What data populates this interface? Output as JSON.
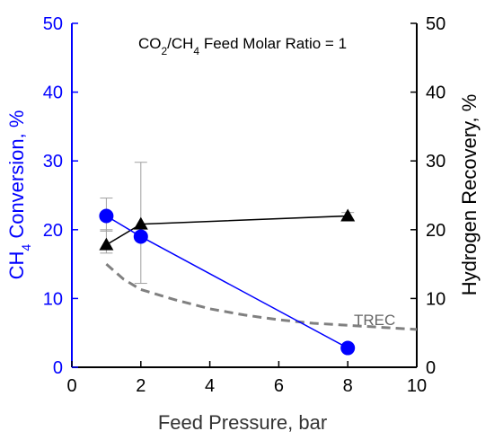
{
  "chart_data": {
    "type": "line",
    "title_parts": {
      "pre": "CO",
      "sub1": "2",
      "mid": "/CH",
      "sub2": "4",
      "post": " Feed Molar Ratio = 1"
    },
    "xlabel": "Feed Pressure, bar",
    "ylabel_left_parts": {
      "pre": "CH",
      "sub": "4",
      "post": " Conversion, %"
    },
    "ylabel_right": "Hydrogen Recovery, %",
    "xlim": [
      0,
      10
    ],
    "ylim_left": [
      0,
      50
    ],
    "ylim_right": [
      0,
      50
    ],
    "x_ticks": [
      "0",
      "2",
      "4",
      "6",
      "8",
      "10"
    ],
    "y_ticks_left": [
      "0",
      "10",
      "20",
      "30",
      "40",
      "50"
    ],
    "y_ticks_right": [
      "0",
      "10",
      "20",
      "30",
      "40",
      "50"
    ],
    "grid": false,
    "series": [
      {
        "axis": "left",
        "marker": "circle",
        "color": "#0000ff",
        "x": [
          1,
          2,
          8
        ],
        "y": [
          22,
          19,
          2.8
        ],
        "error_y": [
          [
            19.8,
            24.6
          ],
          null,
          null
        ]
      },
      {
        "axis": "right",
        "marker": "triangle",
        "color": "#000000",
        "x": [
          1,
          2,
          8
        ],
        "y": [
          17.8,
          20.8,
          22
        ],
        "error_y": [
          [
            16.6,
            20
          ],
          [
            12.2,
            29.8
          ],
          [
            21.5,
            22.5
          ]
        ]
      },
      {
        "name": "TREC",
        "axis": "right",
        "style": "dashed",
        "color": "#808080",
        "x": [
          1,
          1.5,
          2,
          3,
          4,
          5,
          6,
          7,
          8,
          9,
          10
        ],
        "y": [
          15,
          12.8,
          11.3,
          9.8,
          8.5,
          7.6,
          6.9,
          6.4,
          6.1,
          5.8,
          5.5
        ]
      }
    ],
    "annotations": [
      "TREC"
    ]
  },
  "colors": {
    "left_axis": "#0000ff",
    "right_axis": "#000000",
    "trec": "#808080",
    "errorbar": "#a0a0a0"
  }
}
